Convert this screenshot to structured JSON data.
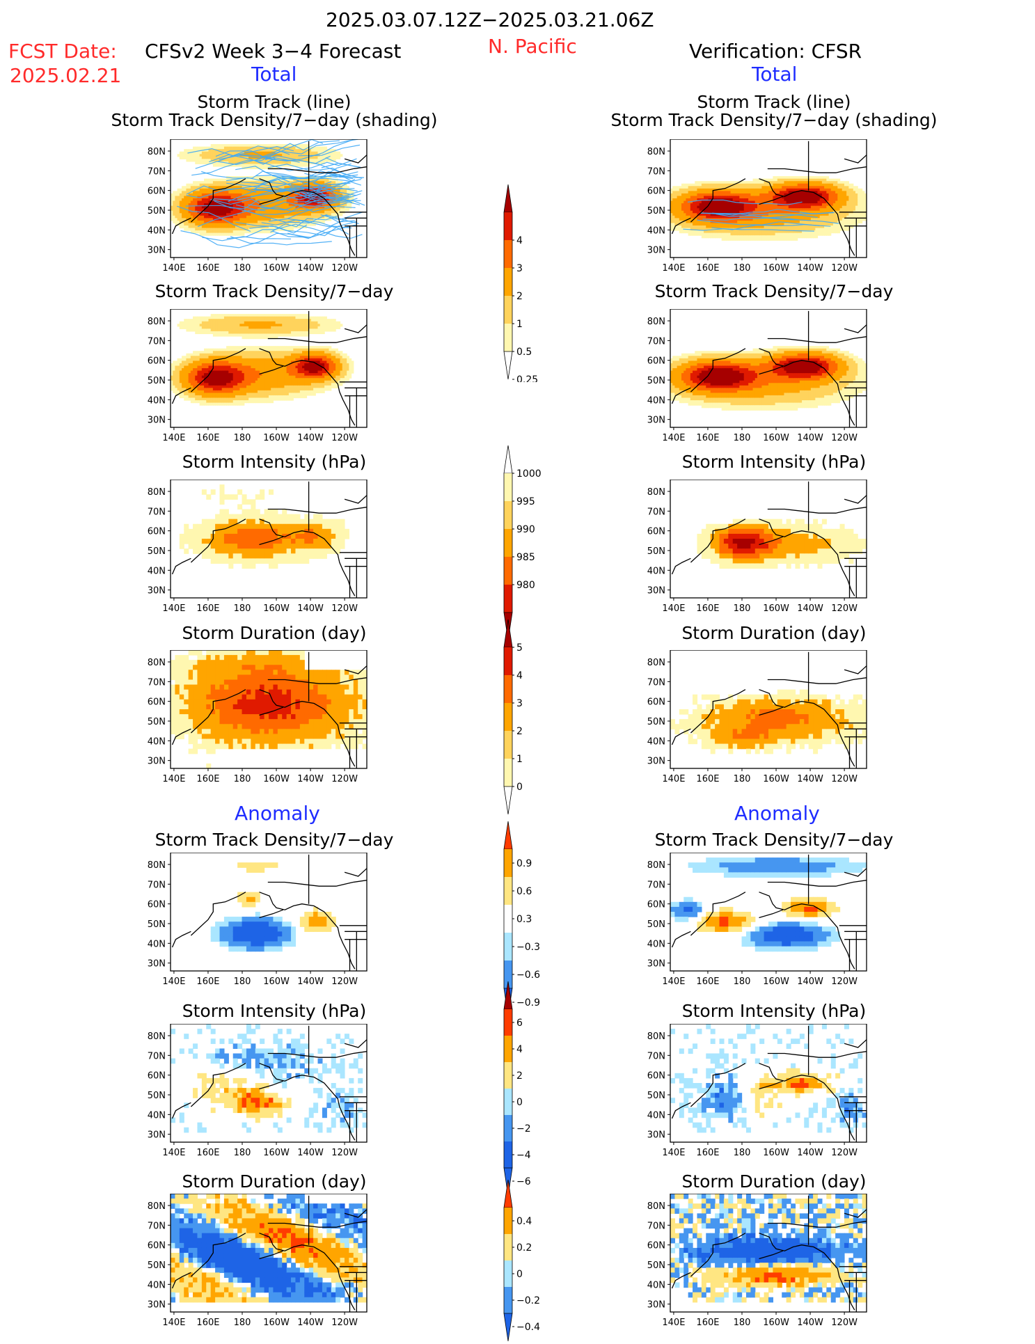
{
  "header": {
    "date_range": "2025.03.07.12Z−2025.03.21.06Z",
    "fcst_label": "FCST Date:",
    "fcst_date": "2025.02.21",
    "region": "N. Pacific",
    "forecast_title": "CFSv2 Week 3−4 Forecast",
    "verification_title": "Verification: CFSR",
    "total_left": "Total",
    "total_right": "Total",
    "anomaly_left": "Anomaly",
    "anomaly_right": "Anomaly"
  },
  "titles": {
    "track_line": "Storm Track (line)",
    "track_shading": "Storm Track Density/7−day (shading)",
    "density": "Storm Track Density/7−day",
    "intensity": "Storm Intensity (hPa)",
    "duration": "Storm Duration (day)"
  },
  "colors": {
    "warm": [
      "#fff7b0",
      "#ffd35c",
      "#ffa500",
      "#ff6a00",
      "#e01a00",
      "#a60000"
    ],
    "anom": [
      "#1e64e6",
      "#4696f0",
      "#aae6ff",
      "#ffffff",
      "#ffe682",
      "#ffa500",
      "#ff3c00",
      "#a60000"
    ],
    "track_line": "#3fa9f5"
  },
  "chart_data": [
    {
      "id": "fcst-track",
      "type": "heatmap",
      "title": "Storm Track (line) / Storm Track Density/7−day (shading)",
      "x_ticks": [
        "140E",
        "160E",
        "180",
        "160W",
        "140W",
        "120W"
      ],
      "y_ticks": [
        "80N",
        "70N",
        "60N",
        "50N",
        "40N",
        "30N"
      ],
      "xlim": [
        140,
        250
      ],
      "ylim": [
        25,
        85
      ],
      "levels": [
        0.25,
        0.5,
        1,
        2,
        3,
        4
      ],
      "centers": [
        {
          "lon": 165,
          "lat": 50,
          "max": 4
        },
        {
          "lon": 220,
          "lat": 55,
          "max": 4
        }
      ]
    },
    {
      "id": "fcst-density",
      "type": "heatmap",
      "title": "Storm Track Density/7−day",
      "x_ticks": [
        "140E",
        "160E",
        "180",
        "160W",
        "140W",
        "120W"
      ],
      "y_ticks": [
        "80N",
        "70N",
        "60N",
        "50N",
        "40N",
        "30N"
      ],
      "levels": [
        0.25,
        0.5,
        1,
        2,
        3,
        4
      ],
      "centers": [
        {
          "lon": 165,
          "lat": 50,
          "max": 4
        },
        {
          "lon": 220,
          "lat": 56,
          "max": 4
        }
      ]
    },
    {
      "id": "fcst-intensity",
      "type": "heatmap",
      "title": "Storm Intensity (hPa)",
      "x_ticks": [
        "140E",
        "160E",
        "180",
        "160W",
        "140W",
        "120W"
      ],
      "y_ticks": [
        "80N",
        "70N",
        "60N",
        "50N",
        "40N",
        "30N"
      ],
      "levels": [
        1000,
        995,
        990,
        985,
        980
      ]
    },
    {
      "id": "fcst-duration",
      "type": "heatmap",
      "title": "Storm Duration (day)",
      "x_ticks": [
        "140E",
        "160E",
        "180",
        "160W",
        "140W",
        "120W"
      ],
      "y_ticks": [
        "80N",
        "70N",
        "60N",
        "50N",
        "40N",
        "30N"
      ],
      "levels": [
        0,
        1,
        2,
        3,
        4,
        5
      ]
    },
    {
      "id": "fcst-density-anom",
      "type": "heatmap",
      "title": "Storm Track Density/7−day",
      "levels": [
        -0.9,
        -0.6,
        -0.3,
        0.3,
        0.6,
        0.9
      ]
    },
    {
      "id": "fcst-intensity-anom",
      "type": "heatmap",
      "title": "Storm Intensity (hPa)",
      "levels": [
        -6,
        -4,
        -2,
        0,
        2,
        4,
        6
      ]
    },
    {
      "id": "fcst-duration-anom",
      "type": "heatmap",
      "title": "Storm Duration (day)",
      "levels": [
        -0.4,
        -0.2,
        0,
        0.2,
        0.4
      ]
    },
    {
      "id": "cfsr-track",
      "type": "heatmap",
      "title": "Storm Track (line) / Storm Track Density/7−day (shading)",
      "levels": [
        0.25,
        0.5,
        1,
        2,
        3,
        4
      ]
    },
    {
      "id": "cfsr-density",
      "type": "heatmap",
      "title": "Storm Track Density/7−day",
      "levels": [
        0.25,
        0.5,
        1,
        2,
        3,
        4
      ]
    },
    {
      "id": "cfsr-intensity",
      "type": "heatmap",
      "title": "Storm Intensity (hPa)",
      "levels": [
        1000,
        995,
        990,
        985,
        980
      ]
    },
    {
      "id": "cfsr-duration",
      "type": "heatmap",
      "title": "Storm Duration (day)",
      "levels": [
        0,
        1,
        2,
        3,
        4,
        5
      ]
    },
    {
      "id": "cfsr-density-anom",
      "type": "heatmap",
      "title": "Storm Track Density/7−day",
      "levels": [
        -0.9,
        -0.6,
        -0.3,
        0.3,
        0.6,
        0.9
      ]
    },
    {
      "id": "cfsr-intensity-anom",
      "type": "heatmap",
      "title": "Storm Intensity (hPa)",
      "levels": [
        -6,
        -4,
        -2,
        0,
        2,
        4,
        6
      ]
    },
    {
      "id": "cfsr-duration-anom",
      "type": "heatmap",
      "title": "Storm Duration (day)",
      "levels": [
        -0.4,
        -0.2,
        0,
        0.2,
        0.4
      ]
    }
  ],
  "axes": {
    "x_ticks": [
      "140E",
      "160E",
      "180",
      "160W",
      "140W",
      "120W"
    ],
    "y_ticks": [
      "80N",
      "70N",
      "60N",
      "50N",
      "40N",
      "30N"
    ]
  },
  "colorbars": [
    {
      "id": "cb-density",
      "labels": [
        "4",
        "3",
        "2",
        "1",
        "0.5",
        "0.25"
      ]
    },
    {
      "id": "cb-intensity",
      "labels": [
        "1000",
        "995",
        "990",
        "985",
        "980"
      ]
    },
    {
      "id": "cb-duration",
      "labels": [
        "5",
        "4",
        "3",
        "2",
        "1",
        "0"
      ]
    },
    {
      "id": "cb-density-anom",
      "labels": [
        "0.9",
        "0.6",
        "0.3",
        "−0.3",
        "−0.6",
        "−0.9"
      ]
    },
    {
      "id": "cb-intensity-anom",
      "labels": [
        "6",
        "4",
        "2",
        "0",
        "−2",
        "−4",
        "−6"
      ]
    },
    {
      "id": "cb-duration-anom",
      "labels": [
        "0.4",
        "0.2",
        "0",
        "−0.2",
        "−0.4"
      ]
    }
  ]
}
